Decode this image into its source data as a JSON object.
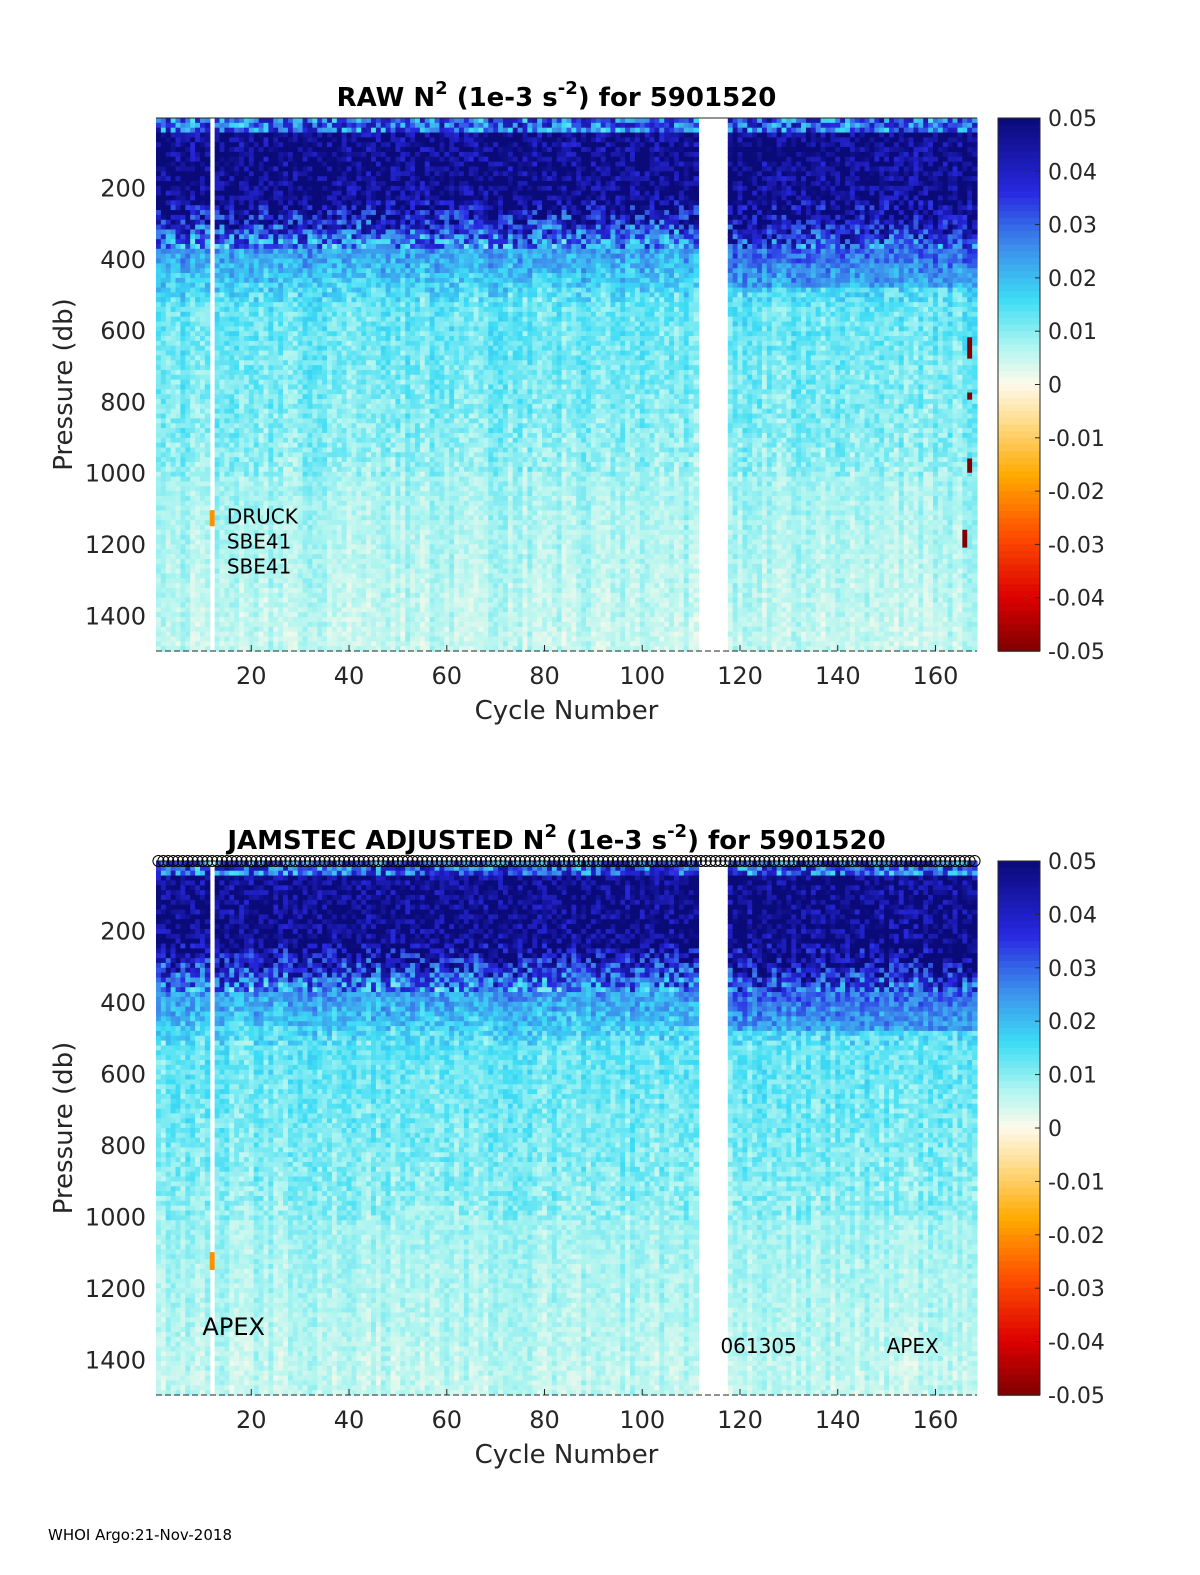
{
  "footer": "WHOI Argo:21-Nov-2018",
  "chart_data": [
    {
      "type": "heatmap",
      "title": "RAW N2 (1e-3 s-2) for 5901520",
      "title_parts": {
        "prefix": "RAW N",
        "sup1": "2",
        "mid": " (1e-3 s",
        "sup2": "-2",
        "suffix": ") for 5901520"
      },
      "xlabel": "Cycle Number",
      "ylabel": "Pressure (db)",
      "xlim": [
        1,
        168
      ],
      "ylim": [
        1500,
        5
      ],
      "x_ticks": [
        20,
        40,
        60,
        80,
        100,
        120,
        140,
        160
      ],
      "y_ticks": [
        200,
        400,
        600,
        800,
        1000,
        1200,
        1400
      ],
      "colorbar": {
        "min": -0.05,
        "max": 0.05,
        "ticks": [
          "0.05",
          "0.04",
          "0.03",
          "0.02",
          "0.01",
          "0",
          "-0.01",
          "-0.02",
          "-0.03",
          "-0.04",
          "-0.05"
        ]
      },
      "data_gap_cycles": [
        112,
        117
      ],
      "gap_profile_cycle": 12,
      "annotations": [
        {
          "text": "DRUCK",
          "cycle": 15,
          "pressure": 1120
        },
        {
          "text": "SBE41",
          "cycle": 15,
          "pressure": 1190
        },
        {
          "text": "SBE41",
          "cycle": 15,
          "pressure": 1260
        }
      ],
      "negative_marks": [
        {
          "cycle": 12,
          "p_top": 1105,
          "p_bottom": 1150,
          "value": -0.02
        },
        {
          "cycle": 167,
          "p_top": 620,
          "p_bottom": 680,
          "value": -0.05
        },
        {
          "cycle": 167,
          "p_top": 775,
          "p_bottom": 795,
          "value": -0.05
        },
        {
          "cycle": 167,
          "p_top": 960,
          "p_bottom": 1000,
          "value": -0.05
        },
        {
          "cycle": 166,
          "p_top": 1160,
          "p_bottom": 1210,
          "value": -0.05
        }
      ],
      "top_markers": false
    },
    {
      "type": "heatmap",
      "title": "JAMSTEC  ADJUSTED N2 (1e-3 s-2) for 5901520",
      "title_parts": {
        "prefix": "JAMSTEC  ADJUSTED N",
        "sup1": "2",
        "mid": " (1e-3 s",
        "sup2": "-2",
        "suffix": ") for 5901520"
      },
      "xlabel": "Cycle Number",
      "ylabel": "Pressure (db)",
      "xlim": [
        1,
        168
      ],
      "ylim": [
        1500,
        5
      ],
      "x_ticks": [
        20,
        40,
        60,
        80,
        100,
        120,
        140,
        160
      ],
      "y_ticks": [
        200,
        400,
        600,
        800,
        1000,
        1200,
        1400
      ],
      "colorbar": {
        "min": -0.05,
        "max": 0.05,
        "ticks": [
          "0.05",
          "0.04",
          "0.03",
          "0.02",
          "0.01",
          "0",
          "-0.01",
          "-0.02",
          "-0.03",
          "-0.04",
          "-0.05"
        ]
      },
      "data_gap_cycles": [
        112,
        117
      ],
      "gap_profile_cycle": 12,
      "annotations": [
        {
          "text": "APEX",
          "cycle": 10,
          "pressure": 1310,
          "size": "large"
        },
        {
          "text": "061305",
          "cycle": 116,
          "pressure": 1360
        },
        {
          "text": "APEX",
          "cycle": 150,
          "pressure": 1360
        }
      ],
      "negative_marks": [
        {
          "cycle": 12,
          "p_top": 1100,
          "p_bottom": 1150,
          "value": -0.02
        }
      ],
      "top_markers": true
    }
  ]
}
